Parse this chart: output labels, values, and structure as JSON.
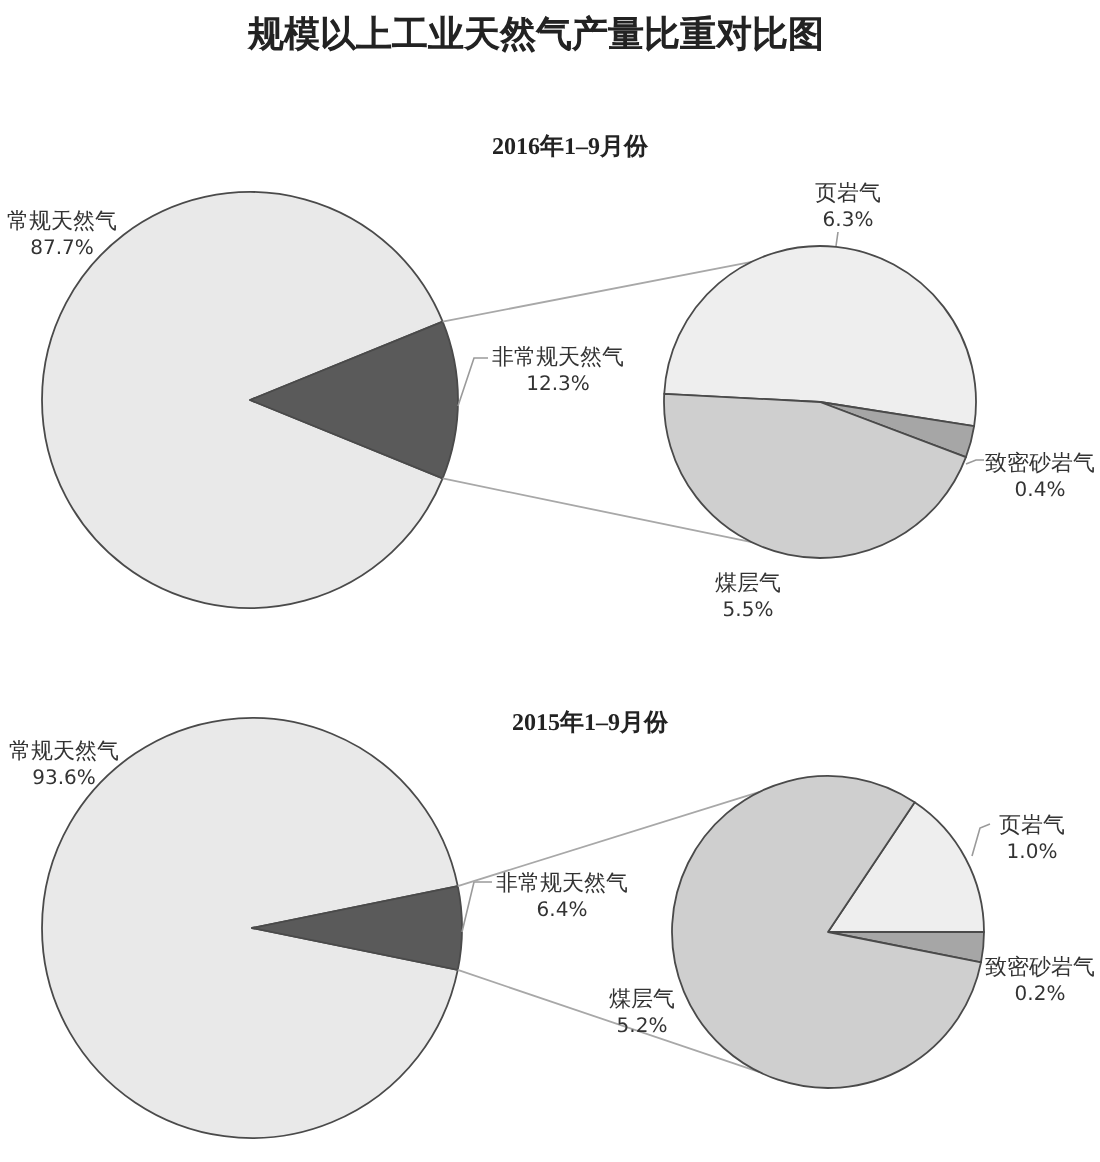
{
  "chart_data": [
    {
      "type": "pie",
      "title": "规模以上工业天然气产量比重对比图",
      "subtitle": "2016年1–9月份",
      "categories": [
        "常规天然气",
        "非常规天然气"
      ],
      "values": [
        87.7,
        12.3
      ],
      "colors": [
        "#e9e9e9",
        "#5a5a5a"
      ],
      "value_labels": [
        "87.7%",
        "12.3%"
      ]
    },
    {
      "type": "pie",
      "categories": [
        "页岩气",
        "致密砂岩气",
        "煤层气"
      ],
      "values": [
        6.3,
        0.4,
        5.5
      ],
      "colors": [
        "#eeeeee",
        "#a6a6a6",
        "#cfcfcf"
      ],
      "value_labels": [
        "6.3%",
        "0.4%",
        "5.5%"
      ]
    },
    {
      "type": "pie",
      "title": "2015年1–9月份",
      "categories": [
        "常规天然气",
        "非常规天然气"
      ],
      "values": [
        93.6,
        6.4
      ],
      "colors": [
        "#e9e9e9",
        "#5a5a5a"
      ],
      "value_labels": [
        "93.6%",
        "6.4%"
      ]
    },
    {
      "type": "pie",
      "categories": [
        "页岩气",
        "致密砂岩气",
        "煤层气"
      ],
      "values": [
        1.0,
        0.2,
        5.2
      ],
      "colors": [
        "#eeeeee",
        "#a6a6a6",
        "#cfcfcf"
      ],
      "value_labels": [
        "1.0%",
        "0.2%",
        "5.2%"
      ]
    }
  ]
}
